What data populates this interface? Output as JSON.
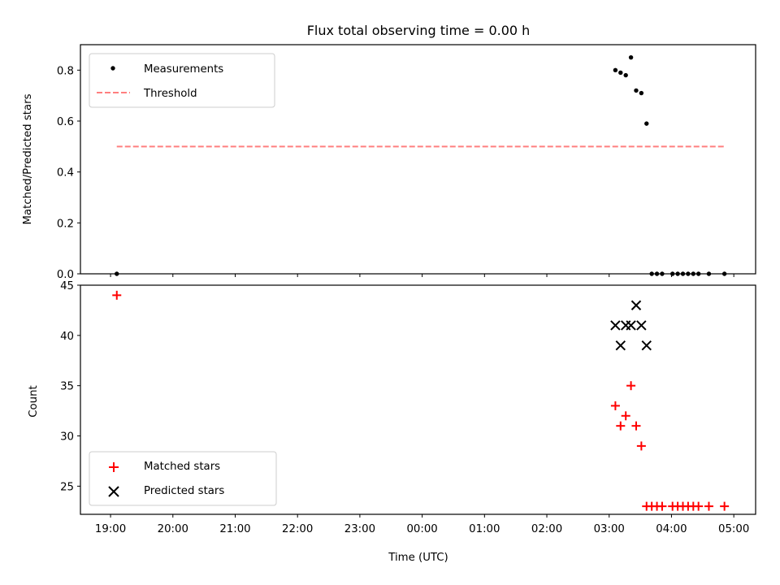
{
  "figure": {
    "title": "Flux total observing time = 0.00 h"
  },
  "chart_data": [
    {
      "type": "scatter",
      "ylabel": "Matched/Predicted stars",
      "xlim": [
        "18:31",
        "05:21"
      ],
      "ylim": [
        0,
        0.9
      ],
      "yticks": [
        0.0,
        0.2,
        0.4,
        0.6,
        0.8
      ],
      "grid": false,
      "legend": "top-left",
      "series": [
        {
          "name": "Measurements",
          "kind": "point",
          "color": "#000000",
          "x": [
            "19:06",
            "03:06",
            "03:11",
            "03:16",
            "03:21",
            "03:26",
            "03:31",
            "03:36",
            "03:41",
            "03:46",
            "03:51",
            "04:01",
            "04:06",
            "04:11",
            "04:16",
            "04:21",
            "04:26",
            "04:36",
            "04:51"
          ],
          "y": [
            0.0,
            0.8,
            0.79,
            0.78,
            0.85,
            0.72,
            0.71,
            0.59,
            0.0,
            0.0,
            0.0,
            0.0,
            0.0,
            0.0,
            0.0,
            0.0,
            0.0,
            0.0,
            0.0
          ]
        },
        {
          "name": "Threshold",
          "kind": "dashed-line",
          "color": "#ff7f7f",
          "x": [
            "19:06",
            "04:51"
          ],
          "y": [
            0.5,
            0.5
          ]
        }
      ]
    },
    {
      "type": "scatter",
      "xlabel": "Time (UTC)",
      "ylabel": "Count",
      "xlim": [
        "18:31",
        "05:21"
      ],
      "ylim": [
        22.2,
        45
      ],
      "yticks": [
        25,
        30,
        35,
        40,
        45
      ],
      "xticks": [
        "19:00",
        "20:00",
        "21:00",
        "22:00",
        "23:00",
        "00:00",
        "01:00",
        "02:00",
        "03:00",
        "04:00",
        "05:00"
      ],
      "grid": false,
      "legend": "bottom-left",
      "series": [
        {
          "name": "Matched stars",
          "kind": "plus",
          "color": "#ff0000",
          "x": [
            "19:06",
            "03:06",
            "03:11",
            "03:16",
            "03:21",
            "03:26",
            "03:31",
            "03:36",
            "03:41",
            "03:46",
            "03:51",
            "04:01",
            "04:06",
            "04:11",
            "04:16",
            "04:21",
            "04:26",
            "04:36",
            "04:51"
          ],
          "y": [
            44,
            33,
            31,
            32,
            35,
            31,
            29,
            23,
            23,
            23,
            23,
            23,
            23,
            23,
            23,
            23,
            23,
            23,
            23
          ]
        },
        {
          "name": "Predicted stars",
          "kind": "x",
          "color": "#000000",
          "x": [
            "03:06",
            "03:11",
            "03:16",
            "03:21",
            "03:26",
            "03:31",
            "03:36"
          ],
          "y": [
            41,
            39,
            41,
            41,
            43,
            41,
            39
          ]
        }
      ]
    }
  ]
}
